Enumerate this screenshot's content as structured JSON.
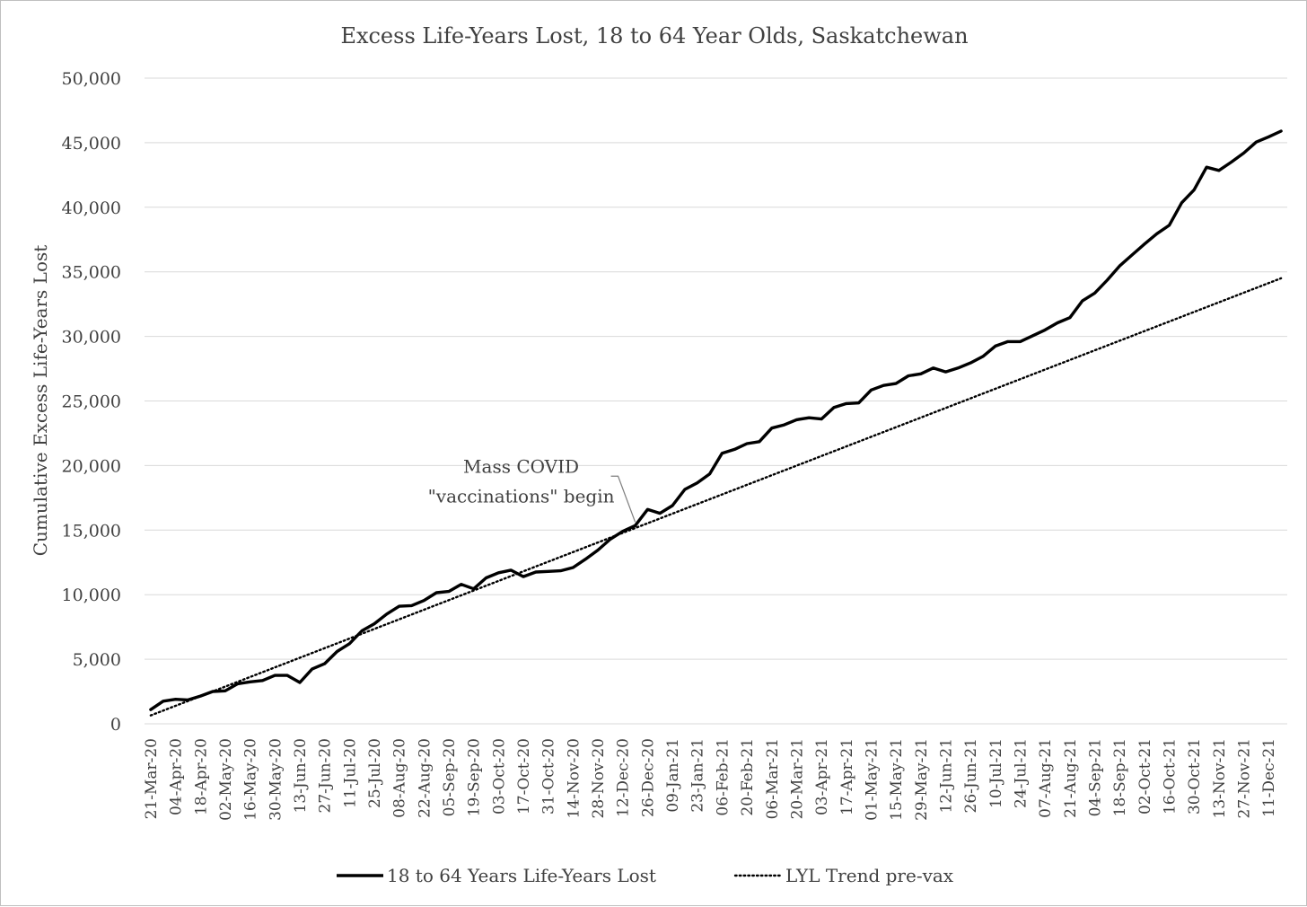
{
  "chart_data": {
    "type": "line",
    "title": "Excess Life-Years Lost, 18 to 64 Year Olds, Saskatchewan",
    "xlabel": "",
    "ylabel": "Cumulative Excess Life-Years Lost",
    "ylim": [
      0,
      50000
    ],
    "yticks": [
      0,
      5000,
      10000,
      15000,
      20000,
      25000,
      30000,
      35000,
      40000,
      45000,
      50000
    ],
    "ytick_labels": [
      "0",
      "5,000",
      "10,000",
      "15,000",
      "20,000",
      "25,000",
      "30,000",
      "35,000",
      "40,000",
      "45,000",
      "50,000"
    ],
    "grid": "horizontal",
    "legend_position": "bottom",
    "x_tick_labels": [
      "21-Mar-20",
      "04-Apr-20",
      "18-Apr-20",
      "02-May-20",
      "16-May-20",
      "30-May-20",
      "13-Jun-20",
      "27-Jun-20",
      "11-Jul-20",
      "25-Jul-20",
      "08-Aug-20",
      "22-Aug-20",
      "05-Sep-20",
      "19-Sep-20",
      "03-Oct-20",
      "17-Oct-20",
      "31-Oct-20",
      "14-Nov-20",
      "28-Nov-20",
      "12-Dec-20",
      "26-Dec-20",
      "09-Jan-21",
      "23-Jan-21",
      "06-Feb-21",
      "20-Feb-21",
      "06-Mar-21",
      "20-Mar-21",
      "03-Apr-21",
      "17-Apr-21",
      "01-May-21",
      "15-May-21",
      "29-May-21",
      "12-Jun-21",
      "26-Jun-21",
      "10-Jul-21",
      "24-Jul-21",
      "07-Aug-21",
      "21-Aug-21",
      "04-Sep-21",
      "18-Sep-21",
      "02-Oct-21",
      "16-Oct-21",
      "30-Oct-21",
      "13-Nov-21",
      "27-Nov-21",
      "11-Dec-21"
    ],
    "series": [
      {
        "name": "18 to 64 Years Life-Years Lost",
        "style": "solid",
        "color": "#000000",
        "values": [
          1100,
          1750,
          1900,
          1850,
          2150,
          2500,
          2550,
          3100,
          3250,
          3350,
          3750,
          3750,
          3200,
          4250,
          4650,
          5600,
          6200,
          7200,
          7750,
          8500,
          9100,
          9150,
          9550,
          10150,
          10250,
          10800,
          10450,
          11300,
          11700,
          11900,
          11400,
          11750,
          11800,
          11850,
          12100,
          12750,
          13450,
          14300,
          14900,
          15350,
          16600,
          16300,
          16900,
          18150,
          18650,
          19350,
          20950,
          21250,
          21700,
          21850,
          22900,
          23150,
          23550,
          23700,
          23600,
          24500,
          24800,
          24850,
          25850,
          26200,
          26350,
          26950,
          27100,
          27550,
          27250,
          27550,
          27950,
          28450,
          29250,
          29600,
          29600,
          30050,
          30500,
          31050,
          31450,
          32750,
          33350,
          34350,
          35450,
          36300,
          37150,
          37950,
          38600,
          40350,
          41350,
          43100,
          42850,
          43500,
          44200,
          45050,
          45450,
          45900
        ]
      },
      {
        "name": "LYL Trend pre-vax",
        "style": "dotted",
        "color": "#000000",
        "start": 650,
        "end": 34500
      }
    ],
    "annotations": [
      {
        "text_lines": [
          "Mass COVID",
          "\"vaccinations\" begin"
        ],
        "at_point_index": 39
      }
    ]
  }
}
